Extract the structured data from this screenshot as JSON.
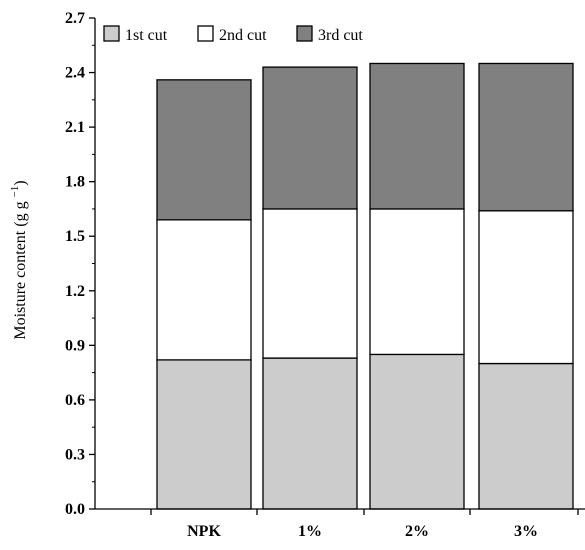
{
  "chart_data": {
    "type": "bar",
    "stacked": true,
    "title": "",
    "xlabel": "",
    "ylabel": "Moisture content (g g",
    "ylabel_superscript": "−1",
    "ylabel_close": ")",
    "ylim": [
      0.0,
      2.7
    ],
    "yticks": [
      0.0,
      0.3,
      0.6,
      0.9,
      1.2,
      1.5,
      1.8,
      2.1,
      2.4,
      2.7
    ],
    "ytick_labels": [
      "0.0",
      "0.3",
      "0.6",
      "0.9",
      "1.2",
      "1.5",
      "1.8",
      "2.1",
      "2.4",
      "2.7"
    ],
    "categories": [
      "NPK",
      "1%",
      "2%",
      "3%"
    ],
    "legend_position": "top-left",
    "grid": false,
    "series": [
      {
        "name": "1st cut",
        "color": "#cccccc",
        "values": [
          0.82,
          0.83,
          0.85,
          0.8
        ]
      },
      {
        "name": "2nd cut",
        "color": "#ffffff",
        "values": [
          0.77,
          0.82,
          0.8,
          0.84
        ]
      },
      {
        "name": "3rd cut",
        "color": "#808080",
        "values": [
          0.77,
          0.78,
          0.8,
          0.81
        ]
      }
    ]
  }
}
